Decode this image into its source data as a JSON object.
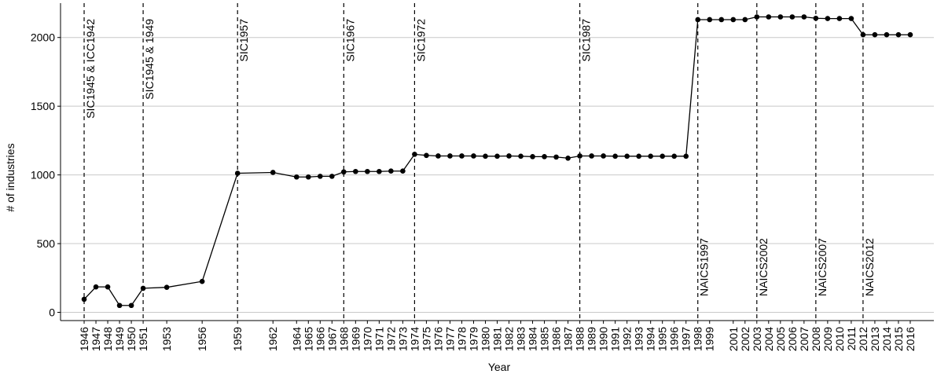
{
  "chart_data": {
    "type": "line",
    "title": "",
    "xlabel": "Year",
    "ylabel": "# of industries",
    "ylim": [
      -60,
      2250
    ],
    "xlim": [
      1944,
      2018
    ],
    "y_ticks": [
      0,
      500,
      1000,
      1500,
      2000
    ],
    "grid": "horizontal",
    "x_tick_labels": [
      "1946",
      "1947",
      "1948",
      "1949",
      "1950",
      "1951",
      "1953",
      "1956",
      "1959",
      "1962",
      "1964",
      "1965",
      "1966",
      "1967",
      "1968",
      "1969",
      "1970",
      "1971",
      "1972",
      "1973",
      "1974",
      "1975",
      "1976",
      "1977",
      "1978",
      "1979",
      "1980",
      "1981",
      "1982",
      "1983",
      "1984",
      "1985",
      "1986",
      "1987",
      "1988",
      "1989",
      "1990",
      "1991",
      "1992",
      "1993",
      "1994",
      "1995",
      "1996",
      "1997",
      "1998",
      "1999",
      "2001",
      "2002",
      "2003",
      "2004",
      "2005",
      "2006",
      "2007",
      "2008",
      "2009",
      "2010",
      "2011",
      "2012",
      "2013",
      "2014",
      "2015",
      "2016"
    ],
    "x": [
      1946,
      1947,
      1948,
      1949,
      1950,
      1951,
      1953,
      1956,
      1959,
      1962,
      1964,
      1965,
      1966,
      1967,
      1968,
      1969,
      1970,
      1971,
      1972,
      1973,
      1974,
      1975,
      1976,
      1977,
      1978,
      1979,
      1980,
      1981,
      1982,
      1983,
      1984,
      1985,
      1986,
      1987,
      1988,
      1989,
      1990,
      1991,
      1992,
      1993,
      1994,
      1995,
      1996,
      1997,
      1998,
      1999,
      2000,
      2001,
      2002,
      2003,
      2004,
      2005,
      2006,
      2007,
      2008,
      2009,
      2010,
      2011,
      2012,
      2013,
      2014,
      2015,
      2016
    ],
    "values": [
      95,
      185,
      185,
      50,
      50,
      175,
      182,
      225,
      1012,
      1018,
      985,
      985,
      990,
      990,
      1022,
      1025,
      1025,
      1025,
      1028,
      1028,
      1150,
      1142,
      1138,
      1138,
      1138,
      1138,
      1136,
      1136,
      1138,
      1136,
      1133,
      1133,
      1130,
      1122,
      1138,
      1138,
      1138,
      1136,
      1136,
      1136,
      1136,
      1136,
      1136,
      1136,
      2130,
      2130,
      2130,
      2130,
      2130,
      2150,
      2150,
      2150,
      2150,
      2150,
      2140,
      2138,
      2138,
      2138,
      2020,
      2020,
      2020,
      2020,
      2020
    ],
    "annotations": [
      {
        "x": 1946,
        "label": "SIC1945 & ICC1942",
        "position": "top"
      },
      {
        "x": 1951,
        "label": "SIC1945 & 1949",
        "position": "top"
      },
      {
        "x": 1959,
        "label": "SIC1957",
        "position": "top"
      },
      {
        "x": 1968,
        "label": "SIC1967",
        "position": "top"
      },
      {
        "x": 1974,
        "label": "SIC1972",
        "position": "top"
      },
      {
        "x": 1988,
        "label": "SIC1987",
        "position": "top"
      },
      {
        "x": 1998,
        "label": "NAICS1997",
        "position": "bottom"
      },
      {
        "x": 2003,
        "label": "NAICS2002",
        "position": "bottom"
      },
      {
        "x": 2008,
        "label": "NAICS2007",
        "position": "bottom"
      },
      {
        "x": 2012,
        "label": "NAICS2012",
        "position": "bottom"
      }
    ],
    "colors": {
      "line": "#000000",
      "grid": "#c8c8c8",
      "annotation": "#000000"
    }
  }
}
